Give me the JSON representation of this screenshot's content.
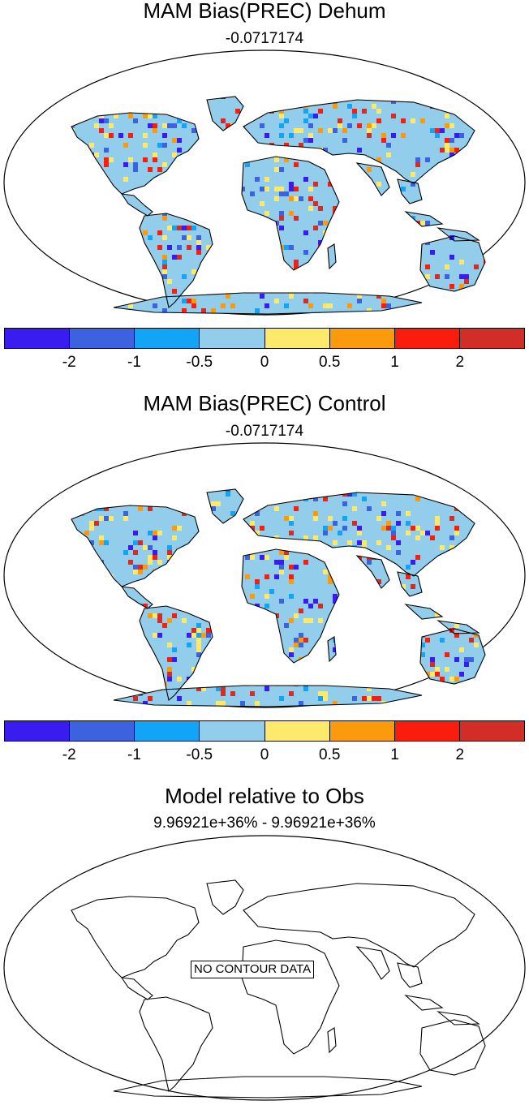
{
  "panels": [
    {
      "title": "MAM Bias(PREC) Dehum",
      "subtitle": "-0.0717174",
      "has_data": true
    },
    {
      "title": "MAM Bias(PREC) Control",
      "subtitle": "-0.0717174",
      "has_data": true
    },
    {
      "title": "Model relative to Obs",
      "subtitle": "9.96921e+36% - 9.96921e+36%",
      "has_data": false,
      "overlay_text": "NO CONTOUR DATA"
    }
  ],
  "colorbar": {
    "colors": [
      "#3a1cf0",
      "#3c62e0",
      "#11a4f7",
      "#93cdec",
      "#fde96a",
      "#fb9a0c",
      "#fa1c0c",
      "#d22d27"
    ],
    "labels": [
      "-2",
      "-1",
      "-0.5",
      "0",
      "0.5",
      "1",
      "2"
    ]
  },
  "map_colors": {
    "land_base": "#93cdec",
    "ocean": "#ffffff",
    "coast": "#000000"
  }
}
